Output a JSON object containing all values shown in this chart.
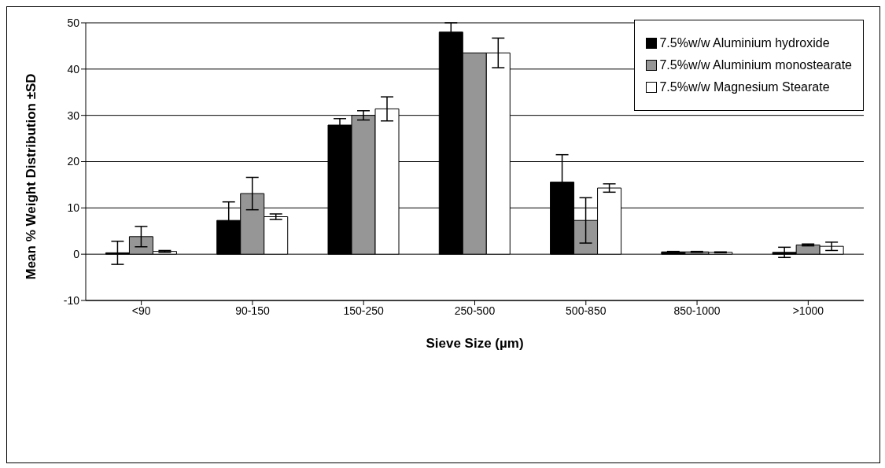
{
  "chart_data": {
    "type": "bar",
    "xlabel": "Sieve Size (µm)",
    "ylabel": "Mean % Weight Distribution ±SD",
    "categories": [
      "<90",
      "90-150",
      "150-250",
      "250-500",
      "500-850",
      "850-1000",
      ">1000"
    ],
    "series": [
      {
        "name": "7.5%w/w Aluminium hydroxide",
        "color": "#000000",
        "values": [
          0.3,
          7.3,
          27.9,
          48,
          15.6,
          0.5,
          0.4
        ],
        "errors": [
          2.5,
          4,
          1.4,
          2,
          5.9,
          0.1,
          1.1
        ]
      },
      {
        "name": "7.5%w/w Aluminium monostearate",
        "color": "#969696",
        "values": [
          3.8,
          13.1,
          30,
          43.5,
          7.3,
          0.5,
          2
        ],
        "errors": [
          2.2,
          3.5,
          1,
          0,
          4.9,
          0.1,
          0.2
        ]
      },
      {
        "name": "7.5%w/w Magnesium Stearate",
        "color": "#ffffff",
        "values": [
          0.6,
          8.1,
          31.4,
          43.5,
          14.3,
          0.4,
          1.7
        ],
        "errors": [
          0.2,
          0.6,
          2.6,
          3.2,
          0.9,
          0.1,
          0.9
        ]
      }
    ],
    "ylim": [
      -10,
      50
    ],
    "yticks": [
      -10,
      0,
      10,
      20,
      30,
      40,
      50
    ],
    "grid": "y",
    "legend": "top right"
  }
}
